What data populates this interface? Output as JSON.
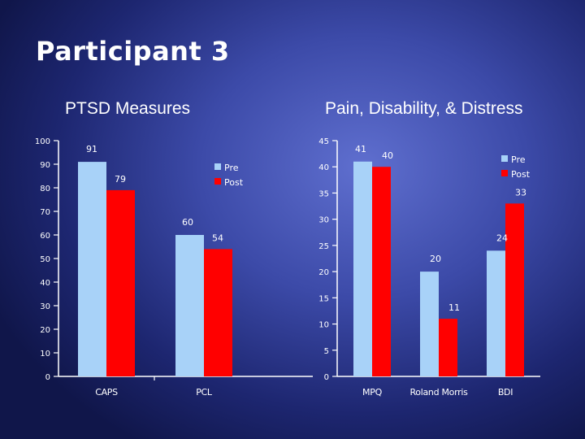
{
  "slide": {
    "title": "Participant 3"
  },
  "colors": {
    "pre": "#a8d2f8",
    "post": "#ff0000",
    "axis": "#ffffff",
    "text": "#ffffff"
  },
  "chart_data": [
    {
      "type": "bar",
      "title": "PTSD Measures",
      "categories": [
        "CAPS",
        "PCL"
      ],
      "series": [
        {
          "name": "Pre",
          "values": [
            91,
            60
          ],
          "labels": [
            "91",
            "60"
          ]
        },
        {
          "name": "Post",
          "values": [
            79,
            54
          ],
          "labels": [
            "79",
            "54"
          ]
        }
      ],
      "ylim": [
        0,
        100
      ],
      "yticks": [
        0,
        10,
        20,
        30,
        40,
        50,
        60,
        70,
        80,
        90,
        100
      ],
      "ytick_labels": [
        "0",
        "10",
        "20",
        "30",
        "40",
        "50",
        "60",
        "70",
        "80",
        "90",
        "100"
      ],
      "legend": [
        "Pre",
        "Post"
      ],
      "legend_position": "top-right",
      "xlabel": "",
      "ylabel": ""
    },
    {
      "type": "bar",
      "title": "Pain, Disability, & Distress",
      "categories": [
        "MPQ",
        "Roland Morris",
        "BDI"
      ],
      "series": [
        {
          "name": "Pre",
          "values": [
            41,
            20,
            24
          ],
          "labels": [
            "41",
            "20",
            "24"
          ]
        },
        {
          "name": "Post",
          "values": [
            40,
            11,
            33
          ],
          "labels": [
            "40",
            "11",
            "33"
          ]
        }
      ],
      "ylim": [
        0,
        45
      ],
      "yticks": [
        0,
        5,
        10,
        15,
        20,
        25,
        30,
        35,
        40,
        45
      ],
      "ytick_labels": [
        "0",
        "5",
        "10",
        "15",
        "20",
        "25",
        "30",
        "35",
        "40",
        "45"
      ],
      "legend": [
        "Pre",
        "Post"
      ],
      "legend_position": "top-right",
      "xlabel": "",
      "ylabel": ""
    }
  ]
}
